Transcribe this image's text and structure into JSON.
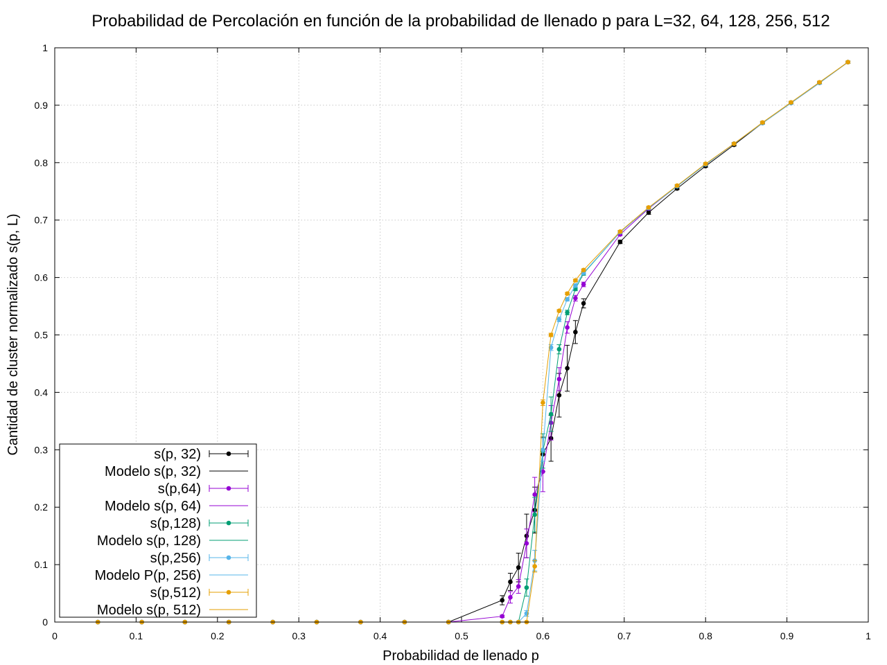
{
  "chart_data": {
    "type": "line",
    "title": "Probabilidad de Percolación en función de la probabilidad de llenado p para L=32, 64, 128, 256, 512",
    "xlabel": "Probabilidad de llenado p",
    "ylabel": "Cantidad de cluster normalizado s(p, L)",
    "xlim": [
      0,
      1
    ],
    "ylim": [
      0,
      1
    ],
    "xticks": [
      "0",
      "0.1",
      "0.2",
      "0.3",
      "0.4",
      "0.5",
      "0.6",
      "0.7",
      "0.8",
      "0.9",
      "1"
    ],
    "yticks": [
      "0",
      "0.1",
      "0.2",
      "0.3",
      "0.4",
      "0.5",
      "0.6",
      "0.7",
      "0.8",
      "0.9",
      "1"
    ],
    "grid": true,
    "legend_position": "bottom-left",
    "series": [
      {
        "name": "s(p, 32)",
        "model_name": "Modelo s(p, 32)",
        "color": "#000000",
        "x": [
          0.053,
          0.107,
          0.16,
          0.214,
          0.268,
          0.322,
          0.376,
          0.43,
          0.484,
          0.55,
          0.56,
          0.57,
          0.58,
          0.59,
          0.6,
          0.61,
          0.62,
          0.63,
          0.64,
          0.65,
          0.695,
          0.73,
          0.765,
          0.8,
          0.835,
          0.87,
          0.905,
          0.94,
          0.975
        ],
        "y": [
          0,
          0,
          0,
          0,
          0,
          0,
          0,
          0,
          0,
          0.038,
          0.07,
          0.095,
          0.15,
          0.195,
          0.292,
          0.32,
          0.395,
          0.442,
          0.505,
          0.555,
          0.662,
          0.713,
          0.755,
          0.794,
          0.831,
          0.869,
          0.904,
          0.939,
          0.975
        ],
        "err": [
          0,
          0,
          0,
          0,
          0,
          0,
          0,
          0,
          0,
          0.008,
          0.015,
          0.025,
          0.038,
          0.04,
          0.03,
          0.04,
          0.038,
          0.04,
          0.02,
          0.008,
          0.003,
          0.003,
          0.002,
          0.002,
          0.002,
          0.002,
          0.002,
          0.002,
          0.002
        ]
      },
      {
        "name": "s(p,64)",
        "model_name": "Modelo s(p, 64)",
        "color": "#9400d3",
        "x": [
          0.053,
          0.107,
          0.16,
          0.214,
          0.268,
          0.322,
          0.376,
          0.43,
          0.484,
          0.55,
          0.56,
          0.57,
          0.58,
          0.59,
          0.6,
          0.61,
          0.62,
          0.63,
          0.64,
          0.65,
          0.695,
          0.73,
          0.765,
          0.8,
          0.835,
          0.87,
          0.905,
          0.94,
          0.975
        ],
        "y": [
          0,
          0,
          0,
          0,
          0,
          0,
          0,
          0,
          0,
          0.01,
          0.043,
          0.062,
          0.137,
          0.222,
          0.262,
          0.347,
          0.423,
          0.513,
          0.564,
          0.588,
          0.675,
          0.72,
          0.759,
          0.797,
          0.833,
          0.869,
          0.904,
          0.939,
          0.975
        ],
        "err": [
          0,
          0,
          0,
          0,
          0,
          0,
          0,
          0,
          0,
          0.002,
          0.01,
          0.012,
          0.025,
          0.03,
          0.035,
          0.03,
          0.02,
          0.01,
          0.005,
          0.004,
          0.002,
          0.002,
          0.002,
          0.002,
          0.002,
          0.002,
          0.002,
          0.002,
          0.002
        ]
      },
      {
        "name": "s(p,128)",
        "model_name": "Modelo s(p, 128)",
        "color": "#009e73",
        "x": [
          0.053,
          0.107,
          0.16,
          0.214,
          0.268,
          0.322,
          0.376,
          0.43,
          0.484,
          0.55,
          0.56,
          0.57,
          0.58,
          0.59,
          0.6,
          0.61,
          0.62,
          0.63,
          0.64,
          0.65,
          0.695,
          0.73,
          0.765,
          0.8,
          0.835,
          0.87,
          0.905,
          0.94,
          0.975
        ],
        "y": [
          0,
          0,
          0,
          0,
          0,
          0,
          0,
          0,
          0,
          0,
          0,
          0,
          0.06,
          0.187,
          0.298,
          0.362,
          0.475,
          0.539,
          0.58,
          0.607,
          0.679,
          0.721,
          0.759,
          0.797,
          0.833,
          0.869,
          0.904,
          0.939,
          0.975
        ],
        "err": [
          0,
          0,
          0,
          0,
          0,
          0,
          0,
          0,
          0,
          0,
          0,
          0,
          0.015,
          0.03,
          0.03,
          0.03,
          0.008,
          0.004,
          0.003,
          0.003,
          0.002,
          0.002,
          0.002,
          0.002,
          0.002,
          0.002,
          0.002,
          0.002,
          0.002
        ]
      },
      {
        "name": "s(p,256)",
        "model_name": "Modelo P(p, 256)",
        "color": "#56b4e9",
        "x": [
          0.053,
          0.107,
          0.16,
          0.214,
          0.268,
          0.322,
          0.376,
          0.43,
          0.484,
          0.55,
          0.56,
          0.57,
          0.58,
          0.59,
          0.6,
          0.61,
          0.62,
          0.63,
          0.64,
          0.65,
          0.695,
          0.73,
          0.765,
          0.8,
          0.835,
          0.87,
          0.905,
          0.94,
          0.975
        ],
        "y": [
          0,
          0,
          0,
          0,
          0,
          0,
          0,
          0,
          0,
          0,
          0,
          0,
          0.015,
          0.107,
          0.3,
          0.478,
          0.527,
          0.562,
          0.586,
          0.608,
          0.679,
          0.721,
          0.759,
          0.797,
          0.833,
          0.869,
          0.904,
          0.939,
          0.975
        ],
        "err": [
          0,
          0,
          0,
          0,
          0,
          0,
          0,
          0,
          0,
          0,
          0,
          0,
          0.005,
          0.018,
          0.02,
          0.005,
          0.004,
          0.003,
          0.003,
          0.002,
          0.002,
          0.002,
          0.002,
          0.002,
          0.002,
          0.002,
          0.002,
          0.002,
          0.002
        ]
      },
      {
        "name": "s(p,512)",
        "model_name": "Modelo s(p, 512)",
        "color": "#e69f00",
        "x": [
          0.053,
          0.107,
          0.16,
          0.214,
          0.268,
          0.322,
          0.376,
          0.43,
          0.484,
          0.55,
          0.56,
          0.57,
          0.58,
          0.59,
          0.6,
          0.61,
          0.62,
          0.63,
          0.64,
          0.65,
          0.695,
          0.73,
          0.765,
          0.8,
          0.835,
          0.87,
          0.905,
          0.94,
          0.975
        ],
        "y": [
          0,
          0,
          0,
          0,
          0,
          0,
          0,
          0,
          0,
          0,
          0,
          0,
          0,
          0.097,
          0.382,
          0.5,
          0.542,
          0.572,
          0.595,
          0.613,
          0.68,
          0.722,
          0.76,
          0.798,
          0.833,
          0.87,
          0.905,
          0.94,
          0.975
        ],
        "err": [
          0,
          0,
          0,
          0,
          0,
          0,
          0,
          0,
          0,
          0,
          0,
          0,
          0,
          0.01,
          0.005,
          0.003,
          0.002,
          0.002,
          0.002,
          0.002,
          0.002,
          0.002,
          0.002,
          0.002,
          0.002,
          0.002,
          0.002,
          0.002,
          0.002
        ]
      }
    ]
  }
}
